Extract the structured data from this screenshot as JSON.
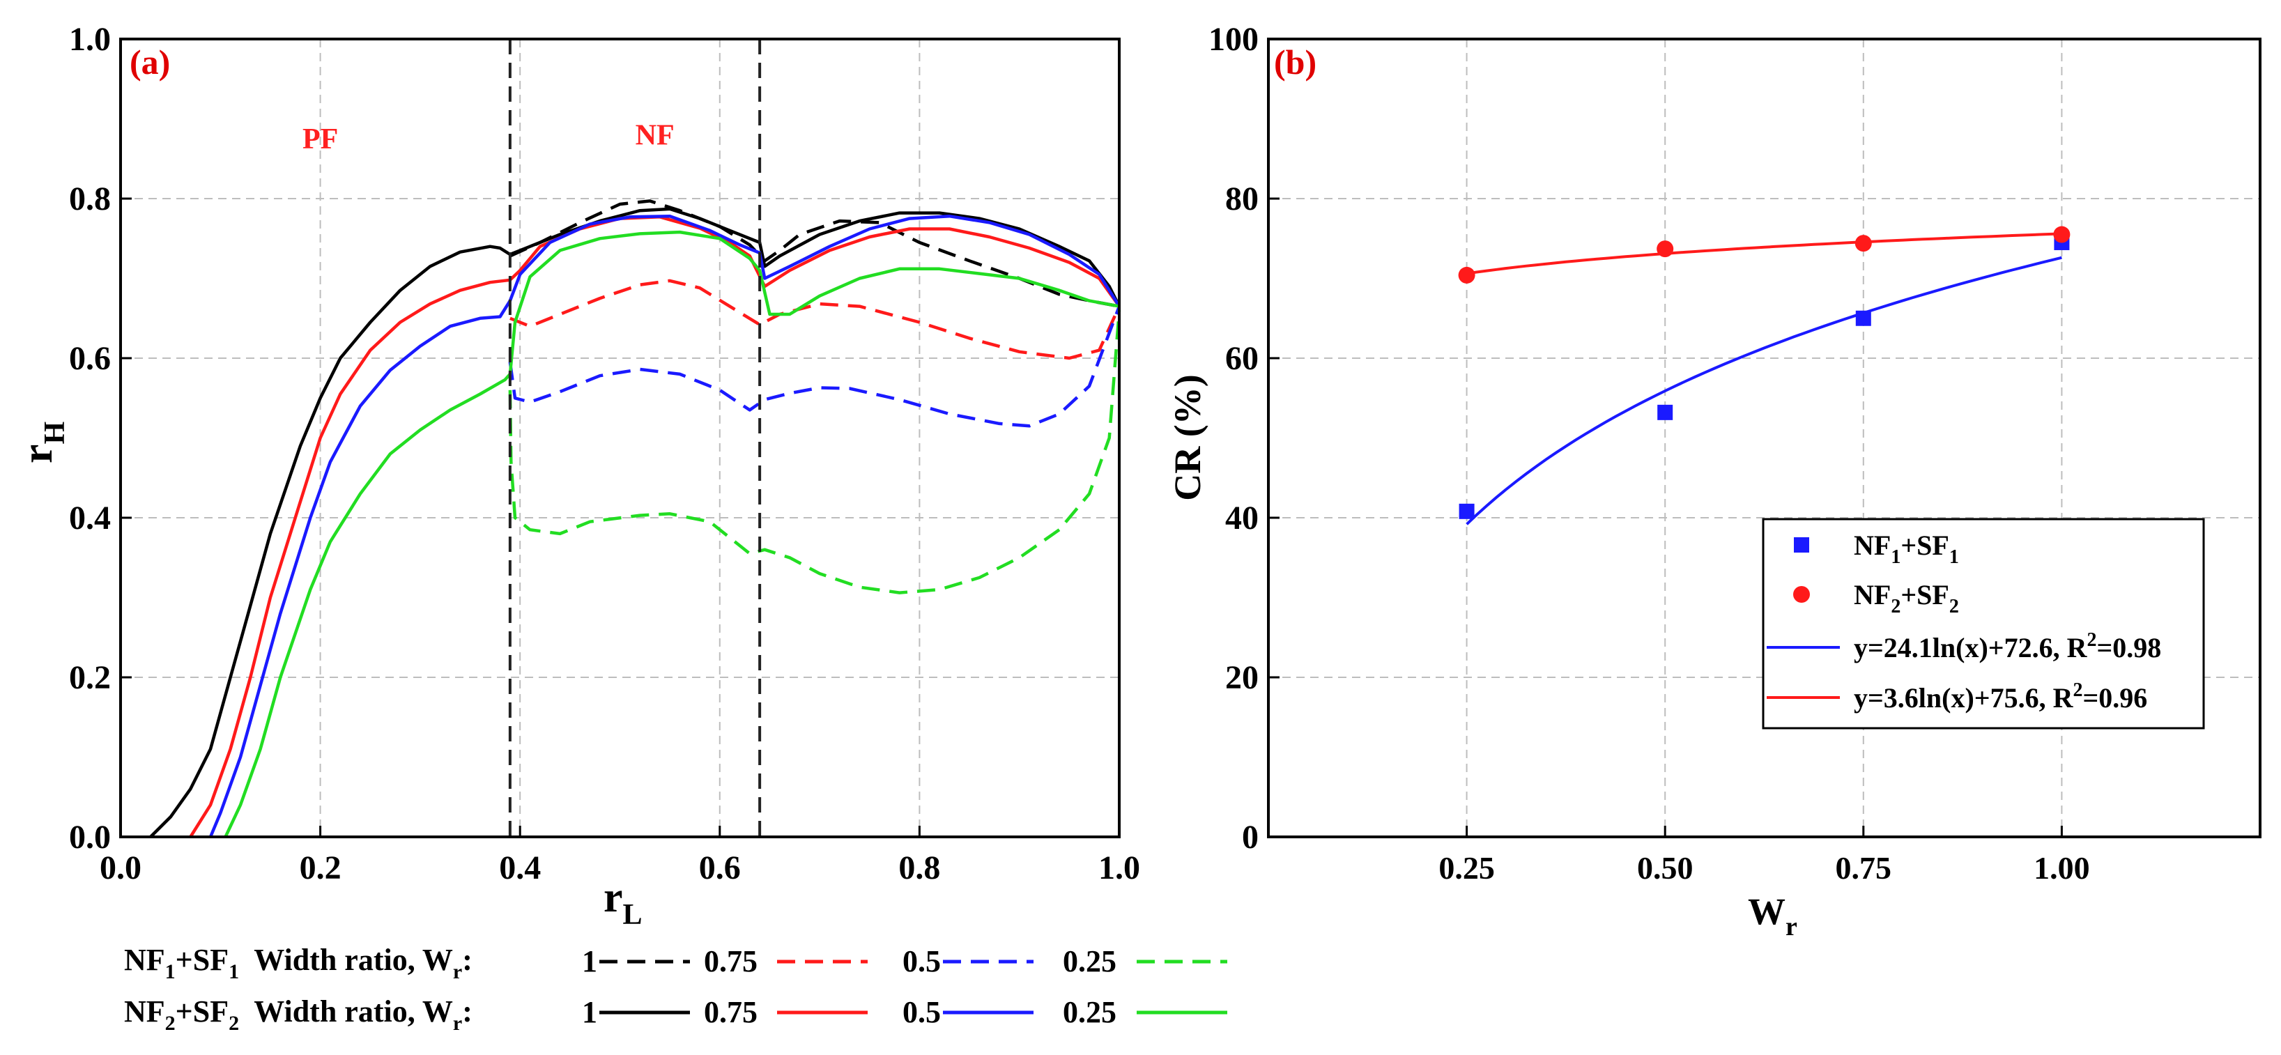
{
  "chart_data": [
    {
      "panel": "a",
      "type": "line",
      "panel_label": "(a)",
      "xlabel_main": "r",
      "xlabel_sub": "L",
      "ylabel_main": "r",
      "ylabel_sub": "H",
      "xlim": [
        0,
        1
      ],
      "ylim": [
        0,
        1
      ],
      "xticks": [
        "0.0",
        "0.2",
        "0.4",
        "0.6",
        "0.8",
        "1.0"
      ],
      "yticks": [
        "0.0",
        "0.2",
        "0.4",
        "0.6",
        "0.8",
        "1.0"
      ],
      "grid": true,
      "region_labels": [
        {
          "text": "PF",
          "x": 0.2,
          "y": 0.875
        },
        {
          "text": "NF",
          "x": 0.535,
          "y": 0.88
        }
      ],
      "vlines": [
        0.39,
        0.64
      ],
      "series": [
        {
          "name": "NF1+SF1, Wr=1",
          "color": "#000000",
          "dash": "dashed",
          "points": [
            [
              0.39,
              0.728
            ],
            [
              0.42,
              0.745
            ],
            [
              0.46,
              0.77
            ],
            [
              0.5,
              0.793
            ],
            [
              0.53,
              0.797
            ],
            [
              0.56,
              0.785
            ],
            [
              0.6,
              0.765
            ],
            [
              0.63,
              0.742
            ],
            [
              0.645,
              0.722
            ],
            [
              0.66,
              0.735
            ],
            [
              0.68,
              0.755
            ],
            [
              0.72,
              0.772
            ],
            [
              0.76,
              0.77
            ],
            [
              0.8,
              0.745
            ],
            [
              0.85,
              0.722
            ],
            [
              0.9,
              0.7
            ],
            [
              0.94,
              0.68
            ],
            [
              0.97,
              0.672
            ],
            [
              1.0,
              0.665
            ]
          ]
        },
        {
          "name": "NF1+SF1, Wr=0.75",
          "color": "#ff1a1a",
          "dash": "dashed",
          "points": [
            [
              0.39,
              0.65
            ],
            [
              0.41,
              0.64
            ],
            [
              0.44,
              0.655
            ],
            [
              0.48,
              0.675
            ],
            [
              0.52,
              0.692
            ],
            [
              0.55,
              0.697
            ],
            [
              0.58,
              0.688
            ],
            [
              0.61,
              0.665
            ],
            [
              0.64,
              0.642
            ],
            [
              0.66,
              0.655
            ],
            [
              0.7,
              0.668
            ],
            [
              0.74,
              0.665
            ],
            [
              0.8,
              0.645
            ],
            [
              0.85,
              0.625
            ],
            [
              0.9,
              0.608
            ],
            [
              0.95,
              0.6
            ],
            [
              0.98,
              0.61
            ],
            [
              1.0,
              0.665
            ]
          ]
        },
        {
          "name": "NF1+SF1, Wr=0.5",
          "color": "#1a1aff",
          "dash": "dashed",
          "points": [
            [
              0.39,
              0.595
            ],
            [
              0.395,
              0.55
            ],
            [
              0.41,
              0.545
            ],
            [
              0.44,
              0.558
            ],
            [
              0.48,
              0.578
            ],
            [
              0.52,
              0.586
            ],
            [
              0.56,
              0.58
            ],
            [
              0.6,
              0.56
            ],
            [
              0.63,
              0.535
            ],
            [
              0.645,
              0.548
            ],
            [
              0.67,
              0.556
            ],
            [
              0.7,
              0.563
            ],
            [
              0.73,
              0.562
            ],
            [
              0.78,
              0.548
            ],
            [
              0.83,
              0.53
            ],
            [
              0.88,
              0.518
            ],
            [
              0.91,
              0.515
            ],
            [
              0.94,
              0.53
            ],
            [
              0.97,
              0.565
            ],
            [
              1.0,
              0.665
            ]
          ]
        },
        {
          "name": "NF1+SF1, Wr=0.25",
          "color": "#22dd22",
          "dash": "dashed",
          "points": [
            [
              0.39,
              0.56
            ],
            [
              0.391,
              0.47
            ],
            [
              0.395,
              0.4
            ],
            [
              0.41,
              0.385
            ],
            [
              0.44,
              0.38
            ],
            [
              0.47,
              0.395
            ],
            [
              0.52,
              0.403
            ],
            [
              0.55,
              0.405
            ],
            [
              0.59,
              0.395
            ],
            [
              0.63,
              0.355
            ],
            [
              0.645,
              0.36
            ],
            [
              0.67,
              0.35
            ],
            [
              0.7,
              0.33
            ],
            [
              0.74,
              0.313
            ],
            [
              0.78,
              0.306
            ],
            [
              0.82,
              0.31
            ],
            [
              0.86,
              0.325
            ],
            [
              0.9,
              0.35
            ],
            [
              0.94,
              0.385
            ],
            [
              0.97,
              0.43
            ],
            [
              0.99,
              0.5
            ],
            [
              1.0,
              0.66
            ]
          ]
        },
        {
          "name": "NF2+SF2, Wr=1",
          "color": "#000000",
          "dash": "solid",
          "points": [
            [
              0.03,
              0.0
            ],
            [
              0.05,
              0.025
            ],
            [
              0.07,
              0.06
            ],
            [
              0.09,
              0.11
            ],
            [
              0.11,
              0.2
            ],
            [
              0.13,
              0.29
            ],
            [
              0.15,
              0.38
            ],
            [
              0.18,
              0.49
            ],
            [
              0.2,
              0.55
            ],
            [
              0.22,
              0.6
            ],
            [
              0.25,
              0.645
            ],
            [
              0.28,
              0.685
            ],
            [
              0.31,
              0.715
            ],
            [
              0.34,
              0.733
            ],
            [
              0.37,
              0.74
            ],
            [
              0.38,
              0.738
            ],
            [
              0.39,
              0.73
            ],
            [
              0.41,
              0.74
            ],
            [
              0.44,
              0.755
            ],
            [
              0.48,
              0.772
            ],
            [
              0.52,
              0.785
            ],
            [
              0.55,
              0.787
            ],
            [
              0.58,
              0.775
            ],
            [
              0.61,
              0.76
            ],
            [
              0.64,
              0.745
            ],
            [
              0.645,
              0.715
            ],
            [
              0.66,
              0.728
            ],
            [
              0.7,
              0.755
            ],
            [
              0.74,
              0.772
            ],
            [
              0.78,
              0.782
            ],
            [
              0.82,
              0.782
            ],
            [
              0.86,
              0.775
            ],
            [
              0.9,
              0.762
            ],
            [
              0.94,
              0.74
            ],
            [
              0.97,
              0.722
            ],
            [
              0.99,
              0.69
            ],
            [
              1.0,
              0.665
            ]
          ]
        },
        {
          "name": "NF2+SF2, Wr=0.75",
          "color": "#ff1a1a",
          "dash": "solid",
          "points": [
            [
              0.07,
              0.0
            ],
            [
              0.09,
              0.04
            ],
            [
              0.11,
              0.11
            ],
            [
              0.13,
              0.2
            ],
            [
              0.15,
              0.3
            ],
            [
              0.18,
              0.42
            ],
            [
              0.2,
              0.5
            ],
            [
              0.22,
              0.555
            ],
            [
              0.25,
              0.61
            ],
            [
              0.28,
              0.645
            ],
            [
              0.31,
              0.668
            ],
            [
              0.34,
              0.685
            ],
            [
              0.37,
              0.695
            ],
            [
              0.39,
              0.698
            ],
            [
              0.4,
              0.71
            ],
            [
              0.42,
              0.74
            ],
            [
              0.46,
              0.762
            ],
            [
              0.5,
              0.775
            ],
            [
              0.54,
              0.777
            ],
            [
              0.58,
              0.763
            ],
            [
              0.61,
              0.745
            ],
            [
              0.63,
              0.728
            ],
            [
              0.645,
              0.69
            ],
            [
              0.67,
              0.71
            ],
            [
              0.71,
              0.735
            ],
            [
              0.75,
              0.752
            ],
            [
              0.79,
              0.762
            ],
            [
              0.83,
              0.762
            ],
            [
              0.87,
              0.752
            ],
            [
              0.91,
              0.738
            ],
            [
              0.95,
              0.72
            ],
            [
              0.98,
              0.7
            ],
            [
              1.0,
              0.665
            ]
          ]
        },
        {
          "name": "NF2+SF2, Wr=0.5",
          "color": "#1a1aff",
          "dash": "solid",
          "points": [
            [
              0.09,
              0.0
            ],
            [
              0.1,
              0.03
            ],
            [
              0.12,
              0.1
            ],
            [
              0.14,
              0.19
            ],
            [
              0.16,
              0.28
            ],
            [
              0.19,
              0.4
            ],
            [
              0.21,
              0.47
            ],
            [
              0.24,
              0.54
            ],
            [
              0.27,
              0.585
            ],
            [
              0.3,
              0.615
            ],
            [
              0.33,
              0.64
            ],
            [
              0.36,
              0.65
            ],
            [
              0.38,
              0.652
            ],
            [
              0.39,
              0.672
            ],
            [
              0.4,
              0.705
            ],
            [
              0.43,
              0.745
            ],
            [
              0.47,
              0.768
            ],
            [
              0.51,
              0.777
            ],
            [
              0.55,
              0.778
            ],
            [
              0.59,
              0.76
            ],
            [
              0.62,
              0.742
            ],
            [
              0.64,
              0.732
            ],
            [
              0.645,
              0.7
            ],
            [
              0.67,
              0.715
            ],
            [
              0.71,
              0.74
            ],
            [
              0.75,
              0.762
            ],
            [
              0.79,
              0.775
            ],
            [
              0.83,
              0.778
            ],
            [
              0.87,
              0.77
            ],
            [
              0.91,
              0.755
            ],
            [
              0.95,
              0.73
            ],
            [
              0.98,
              0.705
            ],
            [
              1.0,
              0.665
            ]
          ]
        },
        {
          "name": "NF2+SF2, Wr=0.25",
          "color": "#22dd22",
          "dash": "solid",
          "points": [
            [
              0.105,
              0.0
            ],
            [
              0.12,
              0.04
            ],
            [
              0.14,
              0.11
            ],
            [
              0.16,
              0.2
            ],
            [
              0.19,
              0.31
            ],
            [
              0.21,
              0.37
            ],
            [
              0.24,
              0.43
            ],
            [
              0.27,
              0.48
            ],
            [
              0.3,
              0.51
            ],
            [
              0.33,
              0.535
            ],
            [
              0.36,
              0.555
            ],
            [
              0.385,
              0.573
            ],
            [
              0.39,
              0.58
            ],
            [
              0.395,
              0.645
            ],
            [
              0.41,
              0.702
            ],
            [
              0.44,
              0.735
            ],
            [
              0.48,
              0.75
            ],
            [
              0.52,
              0.756
            ],
            [
              0.56,
              0.758
            ],
            [
              0.6,
              0.75
            ],
            [
              0.63,
              0.725
            ],
            [
              0.64,
              0.71
            ],
            [
              0.65,
              0.655
            ],
            [
              0.67,
              0.655
            ],
            [
              0.7,
              0.678
            ],
            [
              0.74,
              0.7
            ],
            [
              0.78,
              0.712
            ],
            [
              0.82,
              0.712
            ],
            [
              0.86,
              0.706
            ],
            [
              0.9,
              0.7
            ],
            [
              0.94,
              0.685
            ],
            [
              0.97,
              0.672
            ],
            [
              1.0,
              0.665
            ]
          ]
        }
      ],
      "legend": {
        "row1": {
          "prefix": "NF",
          "prefix_sub": "1",
          "mid": "+SF",
          "mid_sub": "1",
          "label": "  Width ratio, W",
          "label_sub": "r",
          "colon": ":",
          "entries": [
            "1",
            "0.75",
            "0.5",
            "0.25"
          ],
          "dash": "dashed"
        },
        "row2": {
          "prefix": "NF",
          "prefix_sub": "2",
          "mid": "+SF",
          "mid_sub": "2",
          "label": "  Width ratio, W",
          "label_sub": "r",
          "colon": ":",
          "entries": [
            "1",
            "0.75",
            "0.5",
            "0.25"
          ],
          "dash": "solid"
        },
        "colors": [
          "#000000",
          "#ff1a1a",
          "#1a1aff",
          "#22dd22"
        ]
      }
    },
    {
      "panel": "b",
      "type": "scatter",
      "panel_label": "(b)",
      "xlabel_main": "W",
      "xlabel_sub": "r",
      "ylabel": "CR (%)",
      "xlim": [
        0,
        1.25
      ],
      "ylim": [
        0,
        100
      ],
      "xticks": [
        0.25,
        0.5,
        0.75,
        1.0
      ],
      "xtick_labels": [
        "0.25",
        "0.50",
        "0.75",
        "1.00"
      ],
      "yticks": [
        "0",
        "20",
        "40",
        "60",
        "80",
        "100"
      ],
      "grid": true,
      "series": [
        {
          "name": "NF1+SF1",
          "marker": "square",
          "color": "#1a1aff",
          "x": [
            0.25,
            0.5,
            0.75,
            1.0
          ],
          "y": [
            40.8,
            53.2,
            65.0,
            74.5
          ]
        },
        {
          "name": "NF2+SF2",
          "marker": "circle",
          "color": "#ff1a1a",
          "x": [
            0.25,
            0.5,
            0.75,
            1.0
          ],
          "y": [
            70.4,
            73.7,
            74.4,
            75.5
          ]
        }
      ],
      "fits": [
        {
          "a": 24.1,
          "b": 72.6,
          "color": "#1a1aff"
        },
        {
          "a": 3.6,
          "b": 75.6,
          "color": "#ff1a1a"
        }
      ],
      "legend": [
        {
          "main": "NF",
          "sub1": "1",
          "mid": "+SF",
          "sub2": "1"
        },
        {
          "main": "NF",
          "sub1": "2",
          "mid": "+SF",
          "sub2": "2"
        },
        {
          "main": "y=24.1ln(x)+72.6, R",
          "sup": "2",
          "tail": "=0.98"
        },
        {
          "main": "y=3.6ln(x)+75.6, R",
          "sup": "2",
          "tail": "=0.96"
        }
      ]
    }
  ]
}
